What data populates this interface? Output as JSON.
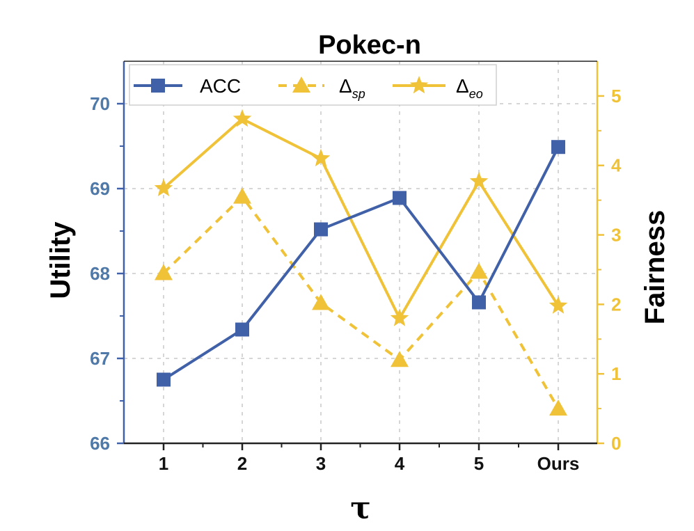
{
  "chart_data": {
    "type": "line",
    "title": "Pokec-n",
    "xlabel": "τ",
    "ylabel_left": "Utility",
    "ylabel_right": "Fairness",
    "categories": [
      "1",
      "2",
      "3",
      "4",
      "5",
      "Ours"
    ],
    "ylim_left": [
      66,
      70.5
    ],
    "ylim_right": [
      0,
      5.5
    ],
    "yticks_left": [
      "66",
      "67",
      "68",
      "69",
      "70"
    ],
    "yticks_right": [
      "0",
      "1",
      "2",
      "3",
      "4",
      "5"
    ],
    "grid": true,
    "legend_position": "top",
    "series": [
      {
        "name": "ACC",
        "axis": "left",
        "values": [
          66.75,
          67.34,
          68.52,
          68.89,
          67.66,
          69.49
        ],
        "marker": "square",
        "dash": "solid",
        "color": "#4060a8"
      },
      {
        "name": "Δsp",
        "label_main": "Δ",
        "label_sub": "sp",
        "axis": "right",
        "values": [
          2.45,
          3.55,
          2.02,
          1.2,
          2.47,
          0.5
        ],
        "marker": "triangle",
        "dash": "dashed",
        "color": "#f0c238"
      },
      {
        "name": "Δeo",
        "label_main": "Δ",
        "label_sub": "eo",
        "axis": "right",
        "values": [
          3.67,
          4.67,
          4.1,
          1.8,
          3.77,
          1.98
        ],
        "marker": "star",
        "dash": "solid",
        "color": "#f0c238"
      }
    ],
    "colors": {
      "left_axis": "#4060a8",
      "left_label": "#4f79a8",
      "right_axis": "#f0c238",
      "grid": "#d6d6d6"
    }
  }
}
